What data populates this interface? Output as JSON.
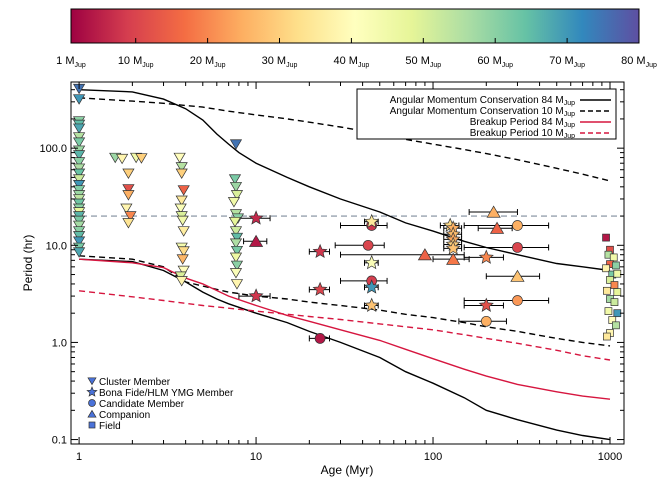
{
  "chart_data": {
    "type": "scatter",
    "title": "",
    "xlabel": "Age (Myr)",
    "ylabel": "Period (hr)",
    "xscale": "log",
    "yscale": "log",
    "xlim": [
      0.9,
      1200
    ],
    "ylim": [
      0.09,
      480
    ],
    "xticks": [
      {
        "value": 1,
        "label": "1"
      },
      {
        "value": 10,
        "label": "10"
      },
      {
        "value": 100,
        "label": "100"
      },
      {
        "value": 1000,
        "label": "1000"
      }
    ],
    "yticks": [
      {
        "value": 0.1,
        "label": "0.1"
      },
      {
        "value": 1,
        "label": "1.0"
      },
      {
        "value": 10,
        "label": "10.0"
      },
      {
        "value": 100,
        "label": "100.0"
      }
    ],
    "colorbar": {
      "min": 1,
      "max": 80,
      "colors": [
        "#9e0142",
        "#d53e4f",
        "#f46d43",
        "#fdae61",
        "#fee08b",
        "#ffffbf",
        "#e6f598",
        "#abdda4",
        "#66c2a5",
        "#3288bd",
        "#5e4fa2"
      ],
      "ticks": [
        {
          "value": 1,
          "label": "1 M",
          "sub": "Jup"
        },
        {
          "value": 10,
          "label": "10 M",
          "sub": "Jup"
        },
        {
          "value": 20,
          "label": "20 M",
          "sub": "Jup"
        },
        {
          "value": 30,
          "label": "30 M",
          "sub": "Jup"
        },
        {
          "value": 40,
          "label": "40 M",
          "sub": "Jup"
        },
        {
          "value": 50,
          "label": "50 M",
          "sub": "Jup"
        },
        {
          "value": 60,
          "label": "60 M",
          "sub": "Jup"
        },
        {
          "value": 70,
          "label": "70 M",
          "sub": "Jup"
        },
        {
          "value": 80,
          "label": "80 M",
          "sub": "Jup"
        }
      ]
    },
    "horizontal_reference_line": {
      "y": 20,
      "color": "#7f8c9c",
      "style": "dashed"
    },
    "legend_top": {
      "placement": "top-right",
      "entries": [
        {
          "label": "Angular Momentum Conservation 84 M",
          "sub": "Jup",
          "color": "#000000",
          "dash": "solid"
        },
        {
          "label": "Angular Momentum Conservation 10 M",
          "sub": "Jup",
          "color": "#000000",
          "dash": "dashed"
        },
        {
          "label": "Breakup Period 84 M",
          "sub": "Jup",
          "color": "#d6163f",
          "dash": "solid"
        },
        {
          "label": "Breakup Period 10 M",
          "sub": "Jup",
          "color": "#d6163f",
          "dash": "dashed"
        }
      ]
    },
    "legend_markers": {
      "placement": "bottom-left",
      "color": "#4a72d9",
      "entries": [
        {
          "label": "Cluster Member",
          "marker": "triangle-down"
        },
        {
          "label": "Bona Fide/HLM YMG Member",
          "marker": "star"
        },
        {
          "label": "Candidate Member",
          "marker": "circle"
        },
        {
          "label": "Companion",
          "marker": "triangle-up"
        },
        {
          "label": "Field",
          "marker": "square"
        }
      ]
    },
    "curves": [
      {
        "name": "Angular Momentum Conservation 84 MJup",
        "color": "#000000",
        "dash": "solid",
        "x": [
          1,
          2,
          3,
          4,
          5,
          6,
          7,
          8,
          10,
          15,
          20,
          30,
          50,
          70,
          100,
          150,
          200,
          300,
          500,
          700,
          1000
        ],
        "y_upper": [
          400,
          380,
          320,
          255,
          195,
          140,
          110,
          90,
          70,
          50,
          40,
          30,
          22,
          17,
          14,
          11,
          9.5,
          8,
          6.5,
          6,
          5.5
        ],
        "y_lower": [
          7.2,
          6.8,
          5.5,
          4.2,
          3.3,
          2.8,
          2.5,
          2.3,
          2.0,
          1.6,
          1.3,
          1.0,
          0.7,
          0.5,
          0.38,
          0.27,
          0.2,
          0.16,
          0.125,
          0.11,
          0.1
        ]
      },
      {
        "name": "Angular Momentum Conservation 10 MJup",
        "color": "#000000",
        "dash": "dashed",
        "x": [
          1,
          2,
          3,
          4,
          5,
          7,
          10,
          15,
          20,
          30,
          50,
          70,
          100,
          150,
          200,
          300,
          500,
          700,
          1000
        ],
        "y_upper": [
          330,
          305,
          290,
          275,
          265,
          240,
          220,
          200,
          185,
          165,
          140,
          123,
          110,
          97,
          88,
          76,
          62,
          54,
          46
        ],
        "y_lower": [
          7.8,
          7.2,
          6.0,
          4.2,
          3.8,
          3.3,
          3.0,
          2.8,
          2.6,
          2.4,
          2.15,
          1.95,
          1.8,
          1.6,
          1.45,
          1.3,
          1.1,
          1.0,
          0.92
        ]
      },
      {
        "name": "Breakup Period 84 MJup",
        "color": "#d6163f",
        "dash": "solid",
        "x": [
          1,
          2,
          3,
          4,
          5,
          7,
          10,
          15,
          20,
          30,
          50,
          70,
          100,
          150,
          200,
          300,
          500,
          700,
          1000
        ],
        "y": [
          7.2,
          6.6,
          5.9,
          4.6,
          4.0,
          3.0,
          2.4,
          1.9,
          1.65,
          1.35,
          1.05,
          0.85,
          0.68,
          0.53,
          0.45,
          0.37,
          0.31,
          0.28,
          0.26
        ]
      },
      {
        "name": "Breakup Period 10 MJup",
        "color": "#d6163f",
        "dash": "dashed",
        "x": [
          1,
          2,
          3,
          5,
          7,
          10,
          15,
          20,
          30,
          50,
          70,
          100,
          150,
          200,
          300,
          500,
          700,
          1000
        ],
        "y": [
          3.4,
          2.95,
          2.7,
          2.4,
          2.25,
          2.1,
          1.95,
          1.85,
          1.72,
          1.55,
          1.45,
          1.35,
          1.2,
          1.1,
          0.98,
          0.83,
          0.73,
          0.66
        ]
      }
    ],
    "cluster_members": [
      {
        "x": 1,
        "y": 410,
        "m": 75
      },
      {
        "x": 1,
        "y": 320,
        "m": 70
      },
      {
        "x": 1,
        "y": 190,
        "m": 60
      },
      {
        "x": 1,
        "y": 175,
        "m": 65
      },
      {
        "x": 1,
        "y": 160,
        "m": 68
      },
      {
        "x": 1,
        "y": 130,
        "m": 55
      },
      {
        "x": 1,
        "y": 115,
        "m": 62
      },
      {
        "x": 1,
        "y": 95,
        "m": 58
      },
      {
        "x": 1,
        "y": 85,
        "m": 66
      },
      {
        "x": 1,
        "y": 72,
        "m": 60
      },
      {
        "x": 1,
        "y": 62,
        "m": 56
      },
      {
        "x": 1,
        "y": 55,
        "m": 64
      },
      {
        "x": 1,
        "y": 48,
        "m": 52
      },
      {
        "x": 1,
        "y": 42,
        "m": 70
      },
      {
        "x": 1,
        "y": 37,
        "m": 61
      },
      {
        "x": 1,
        "y": 33,
        "m": 58
      },
      {
        "x": 1,
        "y": 30,
        "m": 54
      },
      {
        "x": 1,
        "y": 27,
        "m": 63
      },
      {
        "x": 1,
        "y": 24,
        "m": 60
      },
      {
        "x": 1,
        "y": 22,
        "m": 48
      },
      {
        "x": 1,
        "y": 20,
        "m": 66
      },
      {
        "x": 1,
        "y": 18,
        "m": 62
      },
      {
        "x": 1,
        "y": 16,
        "m": 57
      },
      {
        "x": 1,
        "y": 14,
        "m": 60
      },
      {
        "x": 1,
        "y": 12.5,
        "m": 65
      },
      {
        "x": 1,
        "y": 11,
        "m": 70
      },
      {
        "x": 1,
        "y": 9.5,
        "m": 62
      },
      {
        "x": 1,
        "y": 8.5,
        "m": 68
      },
      {
        "x": 1.6,
        "y": 80,
        "m": 58
      },
      {
        "x": 1.75,
        "y": 78,
        "m": 38
      },
      {
        "x": 2.1,
        "y": 80,
        "m": 45
      },
      {
        "x": 2.25,
        "y": 79,
        "m": 30
      },
      {
        "x": 1.9,
        "y": 55,
        "m": 30
      },
      {
        "x": 1.9,
        "y": 38,
        "m": 12
      },
      {
        "x": 1.9,
        "y": 33,
        "m": 25
      },
      {
        "x": 1.85,
        "y": 24,
        "m": 38
      },
      {
        "x": 1.95,
        "y": 20,
        "m": 20
      },
      {
        "x": 1.9,
        "y": 17,
        "m": 34
      },
      {
        "x": 3.7,
        "y": 80,
        "m": 40
      },
      {
        "x": 3.8,
        "y": 64,
        "m": 55
      },
      {
        "x": 3.8,
        "y": 55,
        "m": 30
      },
      {
        "x": 3.9,
        "y": 37,
        "m": 15
      },
      {
        "x": 3.8,
        "y": 29,
        "m": 35
      },
      {
        "x": 3.75,
        "y": 24,
        "m": 42
      },
      {
        "x": 3.8,
        "y": 20,
        "m": 50
      },
      {
        "x": 3.85,
        "y": 18,
        "m": 45
      },
      {
        "x": 3.9,
        "y": 14,
        "m": 36
      },
      {
        "x": 3.8,
        "y": 9.5,
        "m": 44
      },
      {
        "x": 3.9,
        "y": 8.7,
        "m": 32
      },
      {
        "x": 3.85,
        "y": 7.2,
        "m": 26
      },
      {
        "x": 3.9,
        "y": 5.5,
        "m": 40
      },
      {
        "x": 3.75,
        "y": 4.8,
        "m": 50
      },
      {
        "x": 3.8,
        "y": 4.3,
        "m": 38
      },
      {
        "x": 7.7,
        "y": 110,
        "m": 75
      },
      {
        "x": 7.6,
        "y": 48,
        "m": 62
      },
      {
        "x": 7.7,
        "y": 40,
        "m": 58
      },
      {
        "x": 7.8,
        "y": 33,
        "m": 50
      },
      {
        "x": 7.5,
        "y": 28,
        "m": 45
      },
      {
        "x": 7.7,
        "y": 21,
        "m": 55
      },
      {
        "x": 7.9,
        "y": 19,
        "m": 60
      },
      {
        "x": 7.6,
        "y": 17.5,
        "m": 48
      },
      {
        "x": 7.7,
        "y": 14,
        "m": 52
      },
      {
        "x": 7.8,
        "y": 12,
        "m": 65
      },
      {
        "x": 7.7,
        "y": 10.5,
        "m": 56
      },
      {
        "x": 7.8,
        "y": 8.8,
        "m": 62
      },
      {
        "x": 7.7,
        "y": 7.5,
        "m": 46
      },
      {
        "x": 7.8,
        "y": 6.2,
        "m": 60
      },
      {
        "x": 7.7,
        "y": 5.2,
        "m": 42
      },
      {
        "x": 7.8,
        "y": 4.0,
        "m": 38
      }
    ],
    "ymg_members": [
      {
        "x": 10,
        "y": 19,
        "m": 6,
        "xerr": [
          2,
          2
        ]
      },
      {
        "x": 10,
        "y": 3.0,
        "m": 8,
        "xerr": [
          2,
          2
        ]
      },
      {
        "x": 23,
        "y": 8.6,
        "m": 8,
        "xerr": [
          3,
          3
        ]
      },
      {
        "x": 23,
        "y": 3.5,
        "m": 10,
        "xerr": [
          3,
          3
        ]
      },
      {
        "x": 45,
        "y": 17.5,
        "m": 35,
        "xerr": [
          4,
          4
        ]
      },
      {
        "x": 45,
        "y": 6.6,
        "m": 42,
        "xerr": [
          4,
          4
        ]
      },
      {
        "x": 45,
        "y": 3.7,
        "m": 70,
        "xerr": [
          4,
          4
        ]
      },
      {
        "x": 45,
        "y": 2.4,
        "m": 28,
        "xerr": [
          4,
          4
        ]
      },
      {
        "x": 125,
        "y": 16,
        "m": 32,
        "xerr": [
          15,
          15
        ]
      },
      {
        "x": 130,
        "y": 15,
        "m": 25,
        "xerr": [
          15,
          15
        ]
      },
      {
        "x": 130,
        "y": 13,
        "m": 27,
        "xerr": [
          15,
          15
        ]
      },
      {
        "x": 130,
        "y": 11.5,
        "m": 24,
        "xerr": [
          15,
          15
        ]
      },
      {
        "x": 130,
        "y": 10.2,
        "m": 30,
        "xerr": [
          15,
          15
        ]
      },
      {
        "x": 130,
        "y": 9.3,
        "m": 28,
        "xerr": [
          15,
          15
        ]
      },
      {
        "x": 200,
        "y": 7.5,
        "m": 20,
        "xerr": [
          50,
          50
        ]
      },
      {
        "x": 200,
        "y": 2.4,
        "m": 12,
        "xerr": [
          50,
          50
        ]
      }
    ],
    "candidate_members": [
      {
        "x": 23,
        "y": 1.1,
        "m": 4,
        "xerr": [
          3,
          3
        ]
      },
      {
        "x": 45,
        "y": 16,
        "m": 8,
        "xerr": [
          15,
          10
        ]
      },
      {
        "x": 43,
        "y": 10,
        "m": 10,
        "xerr": [
          15,
          10
        ]
      },
      {
        "x": 45,
        "y": 4.3,
        "m": 9,
        "xerr": [
          15,
          10
        ]
      },
      {
        "x": 300,
        "y": 16,
        "m": 25,
        "xerr": [
          150,
          150
        ]
      },
      {
        "x": 300,
        "y": 9.5,
        "m": 10,
        "xerr": [
          150,
          150
        ]
      },
      {
        "x": 300,
        "y": 2.7,
        "m": 22,
        "xerr": [
          150,
          150
        ]
      },
      {
        "x": 200,
        "y": 1.65,
        "m": 25,
        "xerr": [
          60,
          60
        ]
      }
    ],
    "companions": [
      {
        "x": 10,
        "y": 11,
        "m": 4,
        "xerr": [
          1.5,
          1.5
        ]
      },
      {
        "x": 90,
        "y": 8,
        "m": 15,
        "xerr": [
          60,
          60
        ]
      },
      {
        "x": 130,
        "y": 7.2,
        "m": 18,
        "xerr": [
          30,
          30
        ]
      },
      {
        "x": 220,
        "y": 22,
        "m": 25,
        "xerr": [
          60,
          80
        ]
      },
      {
        "x": 230,
        "y": 15,
        "m": 15,
        "xerr": [
          50,
          50
        ]
      },
      {
        "x": 300,
        "y": 4.8,
        "m": 28,
        "xerr": [
          100,
          100
        ]
      }
    ],
    "field_objects": [
      {
        "x": 950,
        "y": 12,
        "m": 4
      },
      {
        "x": 1000,
        "y": 9,
        "m": 12
      },
      {
        "x": 980,
        "y": 8,
        "m": 55
      },
      {
        "x": 1050,
        "y": 7.5,
        "m": 45
      },
      {
        "x": 1000,
        "y": 6.4,
        "m": 15
      },
      {
        "x": 1080,
        "y": 6.2,
        "m": 60
      },
      {
        "x": 950,
        "y": 5.8,
        "m": 38
      },
      {
        "x": 1030,
        "y": 5.0,
        "m": 62
      },
      {
        "x": 1100,
        "y": 5.1,
        "m": 45
      },
      {
        "x": 1000,
        "y": 4.4,
        "m": 50
      },
      {
        "x": 1060,
        "y": 3.9,
        "m": 20
      },
      {
        "x": 960,
        "y": 3.4,
        "m": 35
      },
      {
        "x": 1100,
        "y": 3.3,
        "m": 48
      },
      {
        "x": 1000,
        "y": 2.8,
        "m": 57
      },
      {
        "x": 1060,
        "y": 2.6,
        "m": 52
      },
      {
        "x": 980,
        "y": 2.1,
        "m": 45
      },
      {
        "x": 1100,
        "y": 2.0,
        "m": 70
      },
      {
        "x": 1030,
        "y": 1.7,
        "m": 40
      },
      {
        "x": 1080,
        "y": 1.5,
        "m": 55
      },
      {
        "x": 1000,
        "y": 1.25,
        "m": 38
      },
      {
        "x": 960,
        "y": 1.15,
        "m": 35
      }
    ]
  }
}
